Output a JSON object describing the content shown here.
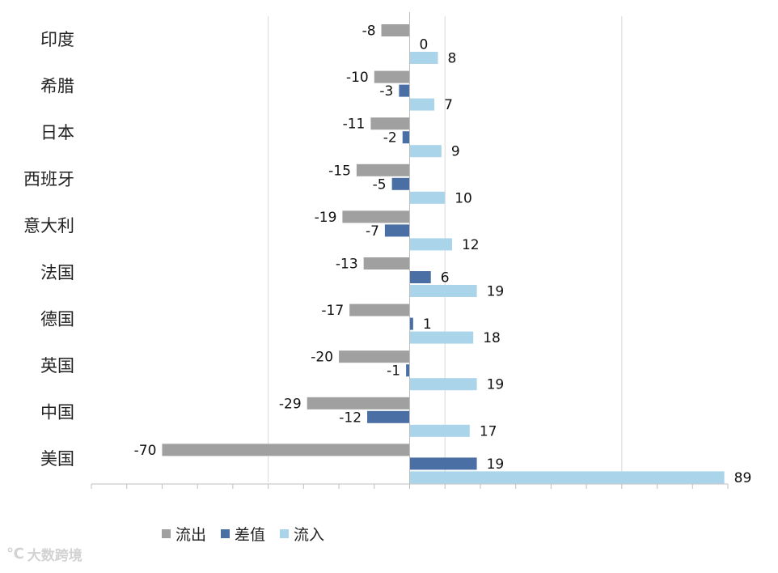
{
  "chart_data": {
    "type": "bar",
    "orientation": "horizontal",
    "categories": [
      "印度",
      "希腊",
      "日本",
      "西班牙",
      "意大利",
      "法国",
      "德国",
      "英国",
      "中国",
      "美国"
    ],
    "series": [
      {
        "name": "流出",
        "color": "#a0a0a0",
        "values": [
          -8,
          -10,
          -11,
          -15,
          -19,
          -13,
          -17,
          -20,
          -29,
          -70
        ]
      },
      {
        "name": "差值",
        "color": "#4a6fa5",
        "values": [
          0,
          -3,
          -2,
          -5,
          -7,
          6,
          1,
          -1,
          -12,
          19
        ]
      },
      {
        "name": "流入",
        "color": "#a9d4ea",
        "values": [
          8,
          7,
          9,
          10,
          12,
          19,
          18,
          19,
          17,
          89
        ]
      }
    ],
    "xlim": [
      -90,
      90
    ],
    "grid": true,
    "legend_position": "bottom",
    "data_labels": true
  },
  "watermark": {
    "logo_symbol": "℃",
    "text": "大数跨境"
  }
}
